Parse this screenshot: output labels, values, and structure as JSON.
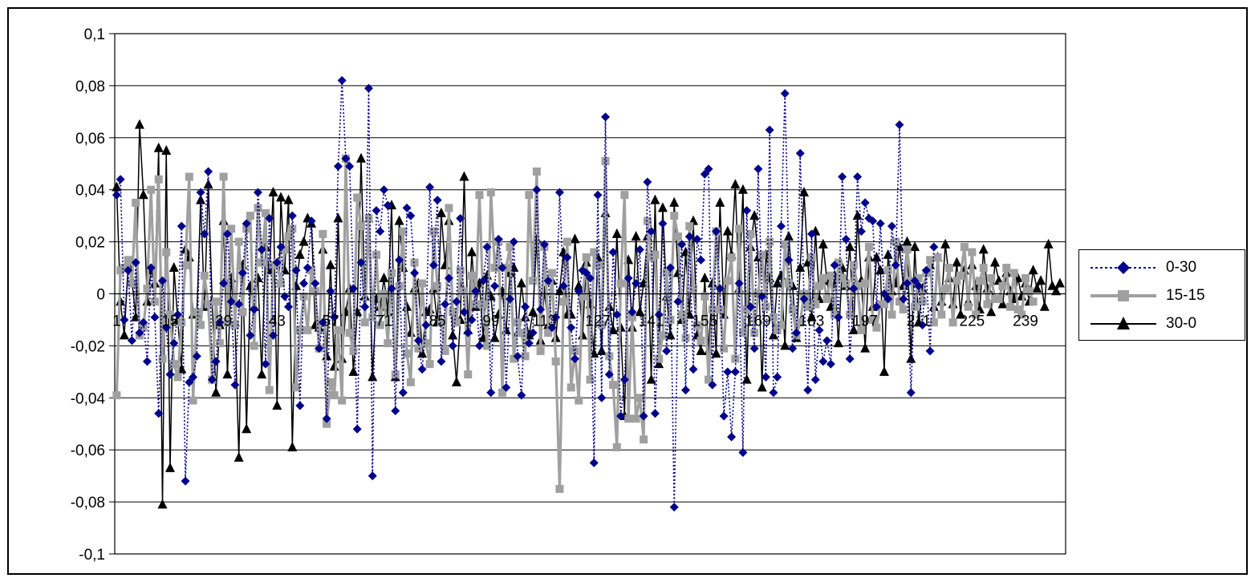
{
  "chart_data": {
    "type": "line",
    "title": "",
    "xlabel": "",
    "ylabel": "",
    "ylim": [
      -0.1,
      0.1
    ],
    "ytick_values": [
      -0.1,
      -0.08,
      -0.06,
      -0.04,
      -0.02,
      0,
      0.02,
      0.04,
      0.06,
      0.08,
      0.1
    ],
    "ytick_labels": [
      "-0,1",
      "-0,08",
      "-0,06",
      "-0,04",
      "-0,02",
      "0",
      "0,02",
      "0,04",
      "0,06",
      "0,08",
      "0,1"
    ],
    "x_count": 249,
    "xtick_labels": [
      "1",
      "15",
      "29",
      "43",
      "57",
      "71",
      "85",
      "99",
      "113",
      "127",
      "141",
      "155",
      "169",
      "183",
      "197",
      "211",
      "225",
      "239"
    ],
    "grid": "horizontal",
    "legend_position": "right",
    "series": [
      {
        "name": "0-30",
        "color": "#00008B",
        "marker": "diamond",
        "line_style": "dotted",
        "values": [
          0.038,
          0.044,
          -0.01,
          0.009,
          -0.018,
          0.012,
          -0.015,
          -0.011,
          -0.026,
          0.01,
          -0.009,
          -0.046,
          0.005,
          -0.013,
          -0.031,
          -0.019,
          -0.008,
          0.026,
          -0.072,
          -0.034,
          -0.032,
          -0.024,
          0.039,
          0.023,
          0.047,
          -0.033,
          -0.026,
          -0.011,
          0.004,
          0.023,
          -0.003,
          -0.035,
          -0.004,
          0.008,
          0.027,
          -0.016,
          -0.006,
          0.039,
          0.017,
          -0.027,
          0.029,
          -0.016,
          0.012,
          0.018,
          -0.001,
          -0.005,
          0.03,
          0.009,
          -0.043,
          0.004,
          0.01,
          0.028,
          0.004,
          -0.021,
          -0.011,
          -0.048,
          0.001,
          -0.009,
          0.049,
          0.082,
          0.052,
          0.049,
          0.002,
          -0.052,
          0.012,
          -0.005,
          0.079,
          -0.07,
          0.032,
          0.024,
          0.04,
          0.034,
          0.002,
          -0.045,
          0.013,
          -0.038,
          0.033,
          0.03,
          0.008,
          -0.018,
          -0.029,
          -0.012,
          0.041,
          0.011,
          0.036,
          -0.026,
          -0.004,
          0.006,
          -0.02,
          -0.003,
          0.029,
          -0.007,
          -0.015,
          -0.01,
          0.001,
          -0.02,
          0.005,
          0.018,
          -0.038,
          0.003,
          0.021,
          0.01,
          -0.036,
          -0.002,
          0.02,
          -0.024,
          -0.039,
          -0.005,
          -0.019,
          -0.015,
          0.04,
          -0.006,
          0.019,
          0.005,
          -0.013,
          -0.009,
          0.039,
          0.003,
          0.014,
          -0.013,
          -0.025,
          0.001,
          0.009,
          0.008,
          0.006,
          -0.065,
          0.038,
          -0.04,
          0.068,
          -0.031,
          0.016,
          -0.008,
          -0.047,
          -0.033,
          0.006,
          -0.007,
          0.004,
          0.017,
          -0.047,
          0.043,
          0.024,
          -0.046,
          -0.008,
          0.027,
          -0.022,
          0.01,
          -0.082,
          -0.003,
          0.019,
          -0.037,
          0.022,
          -0.029,
          0.021,
          0.013,
          0.046,
          0.048,
          -0.035,
          0.024,
          0.002,
          -0.047,
          -0.03,
          -0.055,
          -0.03,
          0.004,
          -0.061,
          0.032,
          -0.005,
          -0.021,
          0.048,
          -0.001,
          -0.032,
          0.063,
          -0.038,
          -0.032,
          0.026,
          0.077,
          0.013,
          -0.021,
          -0.015,
          0.054,
          -0.002,
          -0.037,
          0.023,
          -0.033,
          -0.014,
          -0.026,
          -0.018,
          -0.027,
          0.011,
          -0.009,
          0.045,
          0.021,
          -0.025,
          0.002,
          0.045,
          0.024,
          0.035,
          0.029,
          0.028,
          -0.005,
          0.027,
          0.0,
          -0.002,
          0.026,
          0.011,
          0.065,
          -0.002,
          0.004,
          -0.038,
          0.005,
          0.003,
          -0.012,
          0.009,
          -0.022,
          0.018
        ]
      },
      {
        "name": "15-15",
        "color": "#A0A0A0",
        "marker": "square",
        "line_style": "solid",
        "values": [
          -0.039,
          0.009,
          0.01,
          0.013,
          0.004,
          0.035,
          -0.016,
          -0.013,
          0.002,
          0.04,
          -0.003,
          0.044,
          -0.025,
          0.016,
          -0.008,
          -0.027,
          -0.032,
          -0.011,
          0.011,
          0.045,
          -0.041,
          -0.007,
          -0.012,
          0.007,
          -0.004,
          -0.033,
          -0.003,
          -0.019,
          0.045,
          -0.011,
          0.025,
          -0.012,
          0.02,
          -0.007,
          0.025,
          0.03,
          -0.02,
          0.033,
          0.012,
          0.031,
          -0.037,
          0.011,
          0.012,
          0.004,
          0.017,
          0.022,
          0.025,
          -0.036,
          -0.014,
          -0.001,
          -0.014,
          0.009,
          0.001,
          -0.021,
          0.023,
          -0.05,
          -0.034,
          -0.039,
          -0.014,
          -0.041,
          0.052,
          -0.015,
          -0.022,
          0.037,
          0.026,
          -0.011,
          0.029,
          -0.009,
          0.015,
          -0.012,
          0.0,
          -0.019,
          0.008,
          -0.031,
          0.003,
          0.024,
          -0.023,
          -0.034,
          0.012,
          -0.021,
          0.004,
          -0.019,
          -0.027,
          0.024,
          0.003,
          -0.011,
          -0.022,
          0.033,
          -0.007,
          -0.011,
          0.009,
          0.001,
          -0.031,
          0.007,
          -0.004,
          0.038,
          -0.004,
          -0.02,
          0.039,
          0.01,
          0.02,
          -0.038,
          0.01,
          0.018,
          -0.025,
          -0.011,
          -0.015,
          -0.024,
          0.038,
          0.005,
          0.047,
          -0.022,
          0.018,
          -0.015,
          0.008,
          -0.026,
          -0.075,
          -0.003,
          0.02,
          -0.036,
          -0.022,
          -0.041,
          -0.001,
          0.014,
          -0.033,
          0.016,
          0.011,
          -0.012,
          0.051,
          -0.024,
          -0.035,
          -0.059,
          0.004,
          0.038,
          -0.048,
          -0.009,
          -0.048,
          -0.04,
          -0.056,
          0.028,
          0.014,
          0.015,
          -0.025,
          -0.016,
          0.008,
          -0.01,
          0.03,
          0.022,
          -0.008,
          -0.017,
          0.026,
          0.002,
          -0.012,
          -0.018,
          -0.001,
          -0.033,
          -0.006,
          0.024,
          -0.006,
          -0.021,
          0.005,
          0.014,
          -0.025,
          0.025,
          -0.015,
          -0.006,
          0.023,
          -0.015,
          0.0,
          0.015,
          -0.005,
          0.02,
          -0.009,
          -0.014,
          -0.012,
          0.019,
          0.004,
          -0.006,
          -0.016,
          -0.011,
          0.0,
          -0.005,
          0.014,
          -0.004,
          0.003,
          0.006,
          -0.002,
          0.007,
          -0.008,
          0.012,
          0.006,
          0.004,
          -0.008,
          0.011,
          0.003,
          -0.014,
          0.004,
          0.018,
          -0.01,
          -0.013,
          -0.004,
          -0.004,
          0.009,
          -0.008,
          0.02,
          -0.003,
          -0.006,
          0.017,
          0.005,
          -0.005,
          0.006,
          -0.003,
          0.008,
          0.013,
          -0.011,
          0.014,
          -0.008,
          0.002,
          0.01,
          -0.011,
          0.005,
          0.007,
          0.018,
          -0.005,
          0.016,
          -0.008,
          0.005,
          0.01,
          -0.004,
          0.006,
          -0.002,
          -0.002,
          0.003,
          0.01,
          -0.005,
          0.008,
          -0.006,
          -0.008,
          0.006,
          0.001,
          -0.003
        ]
      },
      {
        "name": "30-0",
        "color": "#000000",
        "marker": "triangle",
        "line_style": "solid",
        "values": [
          0.041,
          -0.003,
          -0.016,
          0.011,
          0.005,
          -0.009,
          0.065,
          0.038,
          -0.003,
          0.009,
          0.004,
          0.056,
          -0.081,
          0.055,
          -0.067,
          0.01,
          -0.01,
          -0.029,
          0.017,
          0.014,
          -0.008,
          -0.008,
          0.036,
          -0.005,
          0.042,
          -0.003,
          -0.038,
          -0.012,
          0.028,
          -0.031,
          0.006,
          -0.011,
          -0.063,
          0.011,
          -0.052,
          0.003,
          -0.005,
          0.006,
          -0.031,
          0.018,
          0.009,
          0.039,
          -0.043,
          0.037,
          0.009,
          0.036,
          -0.059,
          0.003,
          0.015,
          0.02,
          0.029,
          0.027,
          -0.012,
          -0.013,
          0.017,
          -0.024,
          0.011,
          -0.028,
          0.029,
          -0.025,
          -0.007,
          0.002,
          -0.03,
          -0.007,
          0.052,
          -0.001,
          0.029,
          -0.032,
          -0.002,
          -0.005,
          0.006,
          -0.007,
          0.034,
          -0.032,
          0.028,
          0.01,
          -0.005,
          -0.015,
          0.002,
          0.004,
          -0.023,
          -0.007,
          -0.006,
          0.002,
          -0.011,
          0.031,
          0.011,
          0.028,
          -0.016,
          -0.034,
          -0.01,
          0.045,
          -0.014,
          0.016,
          -0.005,
          0.004,
          -0.017,
          0.007,
          -0.001,
          -0.017,
          -0.008,
          0.001,
          -0.014,
          0.008,
          0.01,
          -0.015,
          0.004,
          -0.009,
          -0.016,
          -0.007,
          0.021,
          -0.018,
          0.001,
          -0.012,
          0.005,
          -0.017,
          0.001,
          0.016,
          -0.008,
          -0.008,
          0.021,
          0.003,
          -0.016,
          0.012,
          -0.004,
          -0.023,
          0.014,
          -0.022,
          0.031,
          -0.005,
          -0.014,
          0.023,
          -0.013,
          -0.047,
          0.013,
          -0.013,
          0.022,
          -0.007,
          0.004,
          0.022,
          -0.033,
          0.036,
          -0.027,
          0.033,
          -0.001,
          -0.016,
          0.035,
          0.008,
          -0.01,
          0.016,
          -0.008,
          0.028,
          -0.016,
          -0.022,
          0.006,
          -0.022,
          0.004,
          -0.023,
          0.035,
          -0.008,
          0.024,
          0.015,
          0.042,
          0.002,
          0.04,
          -0.033,
          0.018,
          0.03,
          0.014,
          -0.036,
          0.015,
          0.006,
          -0.016,
          0.004,
          0.007,
          -0.02,
          0.022,
          0.003,
          -0.017,
          0.01,
          0.039,
          0.012,
          -0.009,
          0.024,
          -0.002,
          0.019,
          0.005,
          -0.005,
          0.007,
          -0.019,
          0.01,
          0.003,
          0.018,
          -0.014,
          0.03,
          0.005,
          -0.021,
          0.014,
          -0.005,
          0.014,
          0.009,
          -0.03,
          0.015,
          0.001,
          0.004,
          0.018,
          0.003,
          0.02,
          -0.025,
          0.018,
          -0.011,
          0.002,
          0.008,
          0.011,
          -0.005,
          0.014,
          -0.003,
          0.019,
          0.006,
          -0.004,
          0.012,
          -0.008,
          0.009,
          -0.003,
          0.011,
          0.003,
          -0.006,
          0.017,
          0.002,
          -0.007,
          0.012,
          0.005,
          -0.004,
          0.008,
          0.001,
          -0.002,
          0.006,
          -0.001,
          0.004,
          -0.003,
          0.009,
          0.002,
          0.005,
          -0.005,
          0.019,
          0.003,
          0.001,
          0.004
        ]
      }
    ]
  }
}
